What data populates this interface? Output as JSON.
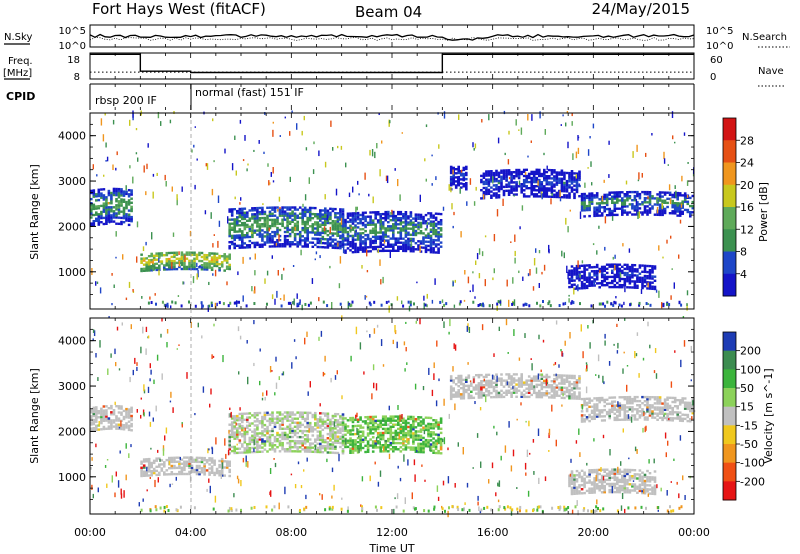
{
  "header": {
    "title": "Fort Hays West (fitACF)",
    "beam": "Beam 04",
    "date": "24/May/2015"
  },
  "noise_panel": {
    "left_label": "N.Sky",
    "left_ticks": [
      "10^5",
      "10^0"
    ],
    "right_label": "N.Search",
    "right_ticks": [
      "10^5",
      "10^0"
    ]
  },
  "freq_panel": {
    "left_label_line1": "Freq.",
    "left_label_line2": "[MHz]",
    "left_ticks": [
      "18",
      "8"
    ],
    "right_label": "Nave",
    "right_ticks": [
      "60",
      "0"
    ]
  },
  "cpid_panel": {
    "label": "CPID",
    "modes": [
      "rbsp 200 IF",
      "normal (fast) 151 IF"
    ]
  },
  "time_axis": {
    "label": "Time UT",
    "ticks": [
      "00:00",
      "04:00",
      "08:00",
      "12:00",
      "16:00",
      "20:00",
      "00:00"
    ]
  },
  "range_axis": {
    "label": "Slant Range [km]",
    "ticks": [
      "1000",
      "2000",
      "3000",
      "4000"
    ]
  },
  "power_colorbar": {
    "label": "Power [dB]",
    "ticks": [
      "4",
      "8",
      "12",
      "16",
      "20",
      "24",
      "28"
    ]
  },
  "velocity_colorbar": {
    "label": "Velocity [m s^-1]",
    "ticks": [
      "200",
      "100",
      "50",
      "15",
      "-15",
      "-50",
      "-100",
      "-200"
    ]
  },
  "chart_data": [
    {
      "type": "line",
      "name": "noise",
      "xlabel": "Time UT",
      "x_range_hours": [
        0,
        24
      ],
      "series": [
        {
          "name": "N.Sky",
          "approx_level": "~10^3"
        },
        {
          "name": "N.Search",
          "approx_level": "~10^3"
        }
      ]
    },
    {
      "type": "line",
      "name": "frequency",
      "ylabel": "Freq. [MHz]",
      "ylim": [
        8,
        18
      ],
      "nave_ylim": [
        0,
        60
      ],
      "freq_segments": [
        {
          "start_h": 0,
          "end_h": 2,
          "freq_mhz": 17.5
        },
        {
          "start_h": 2,
          "end_h": 4,
          "freq_mhz": 11.0
        },
        {
          "start_h": 4,
          "end_h": 14,
          "freq_mhz": 10.5
        },
        {
          "start_h": 14,
          "end_h": 24,
          "freq_mhz": 17.5
        }
      ],
      "nave_level": 16
    },
    {
      "type": "heatmap",
      "name": "power",
      "xlabel": "Time UT",
      "ylabel": "Slant Range [km]",
      "x_range_hours": [
        0,
        24
      ],
      "ylim_km": [
        180,
        4500
      ],
      "colorbar": "Power [dB]",
      "clim": [
        0,
        30
      ],
      "echo_bands": [
        {
          "t0": 0.0,
          "t1": 1.7,
          "r0": 2000,
          "r1": 2800,
          "level": 14
        },
        {
          "t0": 2.0,
          "t1": 5.5,
          "r0": 1000,
          "r1": 1400,
          "level": 21
        },
        {
          "t0": 5.5,
          "t1": 10.0,
          "r0": 1500,
          "r1": 2400,
          "level": 14
        },
        {
          "t0": 10.0,
          "t1": 13.9,
          "r0": 1400,
          "r1": 2300,
          "level": 12
        },
        {
          "t0": 14.3,
          "t1": 14.9,
          "r0": 2800,
          "r1": 3300,
          "level": 7
        },
        {
          "t0": 15.5,
          "t1": 19.5,
          "r0": 2600,
          "r1": 3200,
          "level": 8
        },
        {
          "t0": 19.5,
          "t1": 24.0,
          "r0": 2200,
          "r1": 2700,
          "level": 12
        },
        {
          "t0": 19.0,
          "t1": 22.5,
          "r0": 600,
          "r1": 1100,
          "level": 6
        }
      ]
    },
    {
      "type": "heatmap",
      "name": "velocity",
      "xlabel": "Time UT",
      "ylabel": "Slant Range [km]",
      "x_range_hours": [
        0,
        24
      ],
      "ylim_km": [
        180,
        4500
      ],
      "colorbar": "Velocity [m s^-1]",
      "clim": [
        -200,
        200
      ],
      "echo_bands": [
        {
          "t0": 0.0,
          "t1": 1.7,
          "r0": 2000,
          "r1": 2500,
          "level": 0
        },
        {
          "t0": 2.0,
          "t1": 5.5,
          "r0": 1000,
          "r1": 1400,
          "level": 0
        },
        {
          "t0": 5.5,
          "t1": 10.0,
          "r0": 1500,
          "r1": 2400,
          "level": 10
        },
        {
          "t0": 10.0,
          "t1": 13.9,
          "r0": 1500,
          "r1": 2300,
          "level": 30
        },
        {
          "t0": 14.3,
          "t1": 19.5,
          "r0": 2700,
          "r1": 3200,
          "level": 0
        },
        {
          "t0": 19.5,
          "t1": 24.0,
          "r0": 2200,
          "r1": 2700,
          "level": 0
        },
        {
          "t0": 19.0,
          "t1": 22.5,
          "r0": 600,
          "r1": 1100,
          "level": 0
        }
      ]
    }
  ]
}
